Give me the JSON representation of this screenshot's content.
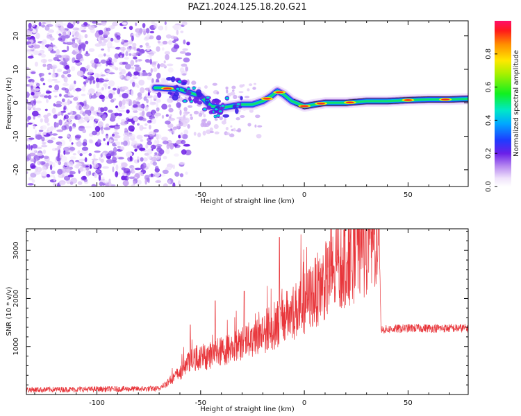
{
  "title": "PAZ1.2024.125.18.20.G21",
  "charts": [
    {
      "type": "heatmap",
      "xlabel": "Height of straight line (km)",
      "ylabel": "Frequency (Hz)",
      "xlim": [
        -134,
        79
      ],
      "ylim": [
        -25,
        24.5
      ],
      "xticks": [
        -100,
        -50,
        0,
        50
      ],
      "yticks": [
        -20,
        -10,
        0,
        10,
        20
      ],
      "colorbar": {
        "label": "Normalized spectral amplitude",
        "lim": [
          0,
          1
        ],
        "ticks": [
          0.0,
          0.2,
          0.4,
          0.6,
          0.8
        ]
      },
      "ridge_frequency": {
        "x": [
          -70,
          -60,
          -50,
          -45,
          -40,
          -35,
          -30,
          -25,
          -20,
          -16,
          -13,
          -10,
          -6,
          -2,
          0,
          5,
          10,
          20,
          30,
          40,
          50,
          60,
          70,
          79
        ],
        "y": [
          4.5,
          4.0,
          2.0,
          -1.0,
          -1.5,
          -1.0,
          -0.5,
          -0.5,
          0.5,
          2.0,
          3.5,
          2.5,
          0.5,
          -0.5,
          -1.0,
          -0.5,
          0.0,
          0.0,
          0.5,
          0.5,
          0.8,
          1.0,
          1.0,
          1.2
        ]
      },
      "noise_region_x": [
        -134,
        -62
      ]
    },
    {
      "type": "line",
      "xlabel": "Height of straight line (km)",
      "ylabel": "SNR (10 * v/v)",
      "xlim": [
        -134,
        79
      ],
      "ylim": [
        0,
        3450
      ],
      "xticks": [
        -100,
        -50,
        0,
        50
      ],
      "yticks": [
        1000,
        2000,
        3000
      ],
      "series_color": "#e8353a",
      "snr_trend": {
        "x": [
          -134,
          -70,
          -60,
          -55,
          -50,
          -40,
          -30,
          -20,
          -10,
          0,
          10,
          20,
          30,
          36,
          37,
          50,
          79
        ],
        "y": [
          100,
          120,
          450,
          700,
          750,
          900,
          1050,
          1300,
          1550,
          1900,
          2350,
          2750,
          3150,
          3300,
          1350,
          1380,
          1380
        ]
      },
      "spikes": [
        {
          "x": -55,
          "y": 1450
        },
        {
          "x": -43,
          "y": 1950
        },
        {
          "x": -29,
          "y": 2150
        },
        {
          "x": -12,
          "y": 3270
        },
        {
          "x": -6,
          "y": 2050
        }
      ]
    }
  ]
}
